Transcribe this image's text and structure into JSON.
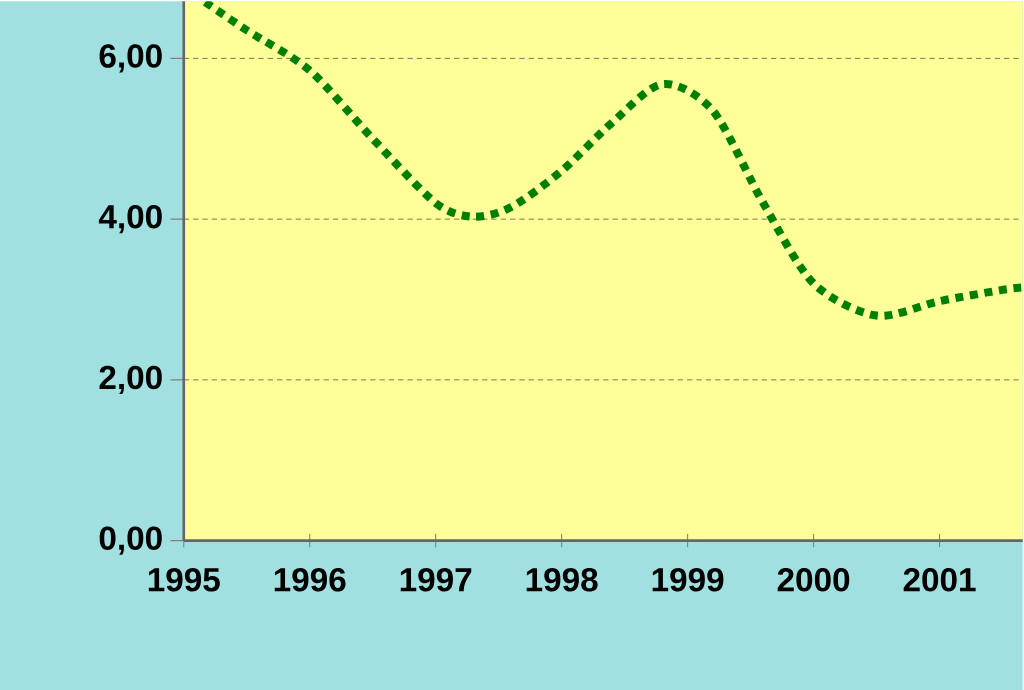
{
  "chart_data": {
    "type": "line",
    "x": [
      1995.17,
      1995.5,
      1996.0,
      1996.5,
      1997.0,
      1997.3,
      1997.6,
      1998.0,
      1998.4,
      1998.8,
      1999.2,
      1999.6,
      2000.0,
      2000.5,
      2001.0,
      2001.5,
      2001.66
    ],
    "series": [
      {
        "color": "#007f00",
        "values": [
          6.7,
          6.35,
          5.85,
          5.0,
          4.2,
          4.03,
          4.15,
          4.6,
          5.2,
          5.68,
          5.35,
          4.2,
          3.2,
          2.8,
          2.98,
          3.12,
          3.15
        ]
      }
    ],
    "xlim": [
      1995,
      2001.66
    ],
    "ylim": [
      0,
      6.71
    ],
    "xticks": [
      1995,
      1996,
      1997,
      1998,
      1999,
      2000,
      2001
    ],
    "yticks": [
      {
        "value": 0,
        "label": "0,00"
      },
      {
        "value": 2,
        "label": "2,00"
      },
      {
        "value": 4,
        "label": "4,00"
      },
      {
        "value": 6,
        "label": "6,00"
      }
    ],
    "grid": "y",
    "line_style": "dotted",
    "marker": "none"
  }
}
